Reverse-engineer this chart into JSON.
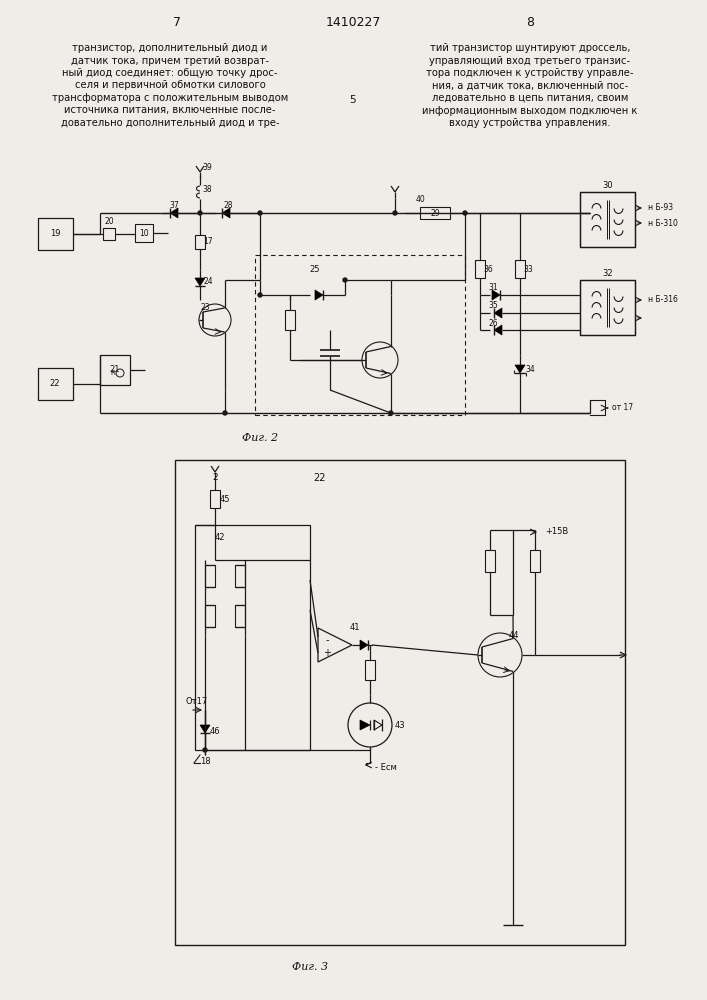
{
  "page_number_left": "7",
  "page_number_center": "1410227",
  "page_number_right": "8",
  "text_left": "транзистор, дополнительный диод и\nдатчик тока, причем третий возврат-\nный диод соединяет: общую точку дрос-\nселя и первичной обмотки силового\nтрансформатора с положительным выводом\nисточника питания, включенные после-\nдовательно дополнительный диод и тре-",
  "text_right": "тий транзистор шунтируют дроссель,\nуправляющий вход третьего транзис-\nтора подключен к устройству управле-\nния, а датчик тока, включенный пос-\nледовательно в цепь питания, своим\nинформационным выходом подключен к\nвходу устройства управления.",
  "line_number": "5",
  "fig2_caption": "Фиг. 2",
  "fig3_caption": "Фиг. 3",
  "bg_color": "#f0ede8",
  "line_color": "#1a1a1a",
  "text_color": "#111111"
}
